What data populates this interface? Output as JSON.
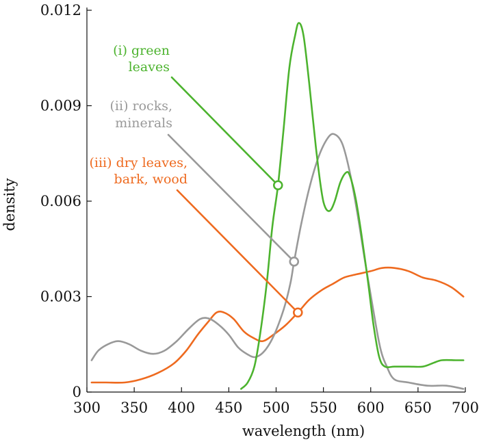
{
  "chart_data": {
    "type": "line",
    "title": "",
    "xlabel": "wavelength (nm)",
    "ylabel": "density",
    "xlim": [
      300,
      700
    ],
    "ylim": [
      0,
      0.012
    ],
    "x_ticks": [
      300,
      350,
      400,
      450,
      500,
      550,
      600,
      650,
      700
    ],
    "y_ticks": [
      0,
      0.003,
      0.006,
      0.009,
      0.012
    ],
    "x_tick_labels": [
      "300",
      "350",
      "400",
      "450",
      "500",
      "550",
      "600",
      "650",
      "700"
    ],
    "y_tick_labels": [
      "0",
      "0.003",
      "0.006",
      "0.009",
      "0.012"
    ],
    "grid": false,
    "series": [
      {
        "key": "green",
        "color": "#4cb32e",
        "label_lines": [
          "(i) green",
          "leaves"
        ],
        "marker": {
          "x": 502,
          "y": 0.0065
        },
        "points": [
          [
            463,
            0.0001
          ],
          [
            470,
            0.0003
          ],
          [
            477,
            0.0008
          ],
          [
            483,
            0.0018
          ],
          [
            490,
            0.0034
          ],
          [
            496,
            0.0052
          ],
          [
            502,
            0.0065
          ],
          [
            508,
            0.0083
          ],
          [
            514,
            0.0102
          ],
          [
            520,
            0.0112
          ],
          [
            524,
            0.0116
          ],
          [
            529,
            0.0112
          ],
          [
            535,
            0.0097
          ],
          [
            542,
            0.0077
          ],
          [
            548,
            0.0063
          ],
          [
            552,
            0.0058
          ],
          [
            557,
            0.0057
          ],
          [
            562,
            0.006
          ],
          [
            568,
            0.0066
          ],
          [
            574,
            0.0069
          ],
          [
            578,
            0.0068
          ],
          [
            584,
            0.0061
          ],
          [
            590,
            0.005
          ],
          [
            597,
            0.0035
          ],
          [
            603,
            0.0021
          ],
          [
            609,
            0.0011
          ],
          [
            615,
            0.0008
          ],
          [
            625,
            0.0008
          ],
          [
            640,
            0.0008
          ],
          [
            655,
            0.0008
          ],
          [
            665,
            0.0009
          ],
          [
            675,
            0.001
          ],
          [
            690,
            0.001
          ],
          [
            698,
            0.001
          ]
        ]
      },
      {
        "key": "gray",
        "color": "#999999",
        "label_lines": [
          "(ii) rocks,",
          "minerals"
        ],
        "marker": {
          "x": 519,
          "y": 0.0041
        },
        "points": [
          [
            305,
            0.001
          ],
          [
            312,
            0.0013
          ],
          [
            322,
            0.0015
          ],
          [
            333,
            0.0016
          ],
          [
            345,
            0.0015
          ],
          [
            357,
            0.0013
          ],
          [
            370,
            0.0012
          ],
          [
            382,
            0.0013
          ],
          [
            395,
            0.0016
          ],
          [
            408,
            0.002
          ],
          [
            420,
            0.0023
          ],
          [
            430,
            0.0023
          ],
          [
            440,
            0.0021
          ],
          [
            450,
            0.0018
          ],
          [
            460,
            0.0014
          ],
          [
            469,
            0.0012
          ],
          [
            478,
            0.0011
          ],
          [
            488,
            0.0013
          ],
          [
            498,
            0.0018
          ],
          [
            508,
            0.0026
          ],
          [
            515,
            0.0034
          ],
          [
            519,
            0.0041
          ],
          [
            526,
            0.0052
          ],
          [
            535,
            0.0064
          ],
          [
            545,
            0.0074
          ],
          [
            555,
            0.008
          ],
          [
            562,
            0.0081
          ],
          [
            570,
            0.0078
          ],
          [
            578,
            0.0069
          ],
          [
            586,
            0.0056
          ],
          [
            594,
            0.0041
          ],
          [
            602,
            0.0027
          ],
          [
            610,
            0.0014
          ],
          [
            617,
            0.0008
          ],
          [
            625,
            0.0004
          ],
          [
            640,
            0.0003
          ],
          [
            660,
            0.0002
          ],
          [
            680,
            0.0002
          ],
          [
            698,
            0.0001
          ]
        ]
      },
      {
        "key": "orange",
        "color": "#ee6a1f",
        "label_lines": [
          "(iii) dry leaves,",
          "bark, wood"
        ],
        "marker": {
          "x": 523,
          "y": 0.0025
        },
        "points": [
          [
            305,
            0.0003
          ],
          [
            320,
            0.0003
          ],
          [
            340,
            0.0003
          ],
          [
            357,
            0.0004
          ],
          [
            375,
            0.0006
          ],
          [
            392,
            0.0009
          ],
          [
            405,
            0.0013
          ],
          [
            417,
            0.0018
          ],
          [
            428,
            0.0022
          ],
          [
            437,
            0.0025
          ],
          [
            445,
            0.0025
          ],
          [
            455,
            0.0023
          ],
          [
            466,
            0.0019
          ],
          [
            476,
            0.0017
          ],
          [
            486,
            0.0016
          ],
          [
            497,
            0.0018
          ],
          [
            510,
            0.0021
          ],
          [
            523,
            0.0025
          ],
          [
            535,
            0.0029
          ],
          [
            548,
            0.0032
          ],
          [
            560,
            0.0034
          ],
          [
            572,
            0.0036
          ],
          [
            585,
            0.0037
          ],
          [
            600,
            0.0038
          ],
          [
            612,
            0.0039
          ],
          [
            625,
            0.0039
          ],
          [
            640,
            0.0038
          ],
          [
            655,
            0.0036
          ],
          [
            670,
            0.0035
          ],
          [
            685,
            0.0033
          ],
          [
            698,
            0.003
          ]
        ]
      }
    ]
  }
}
